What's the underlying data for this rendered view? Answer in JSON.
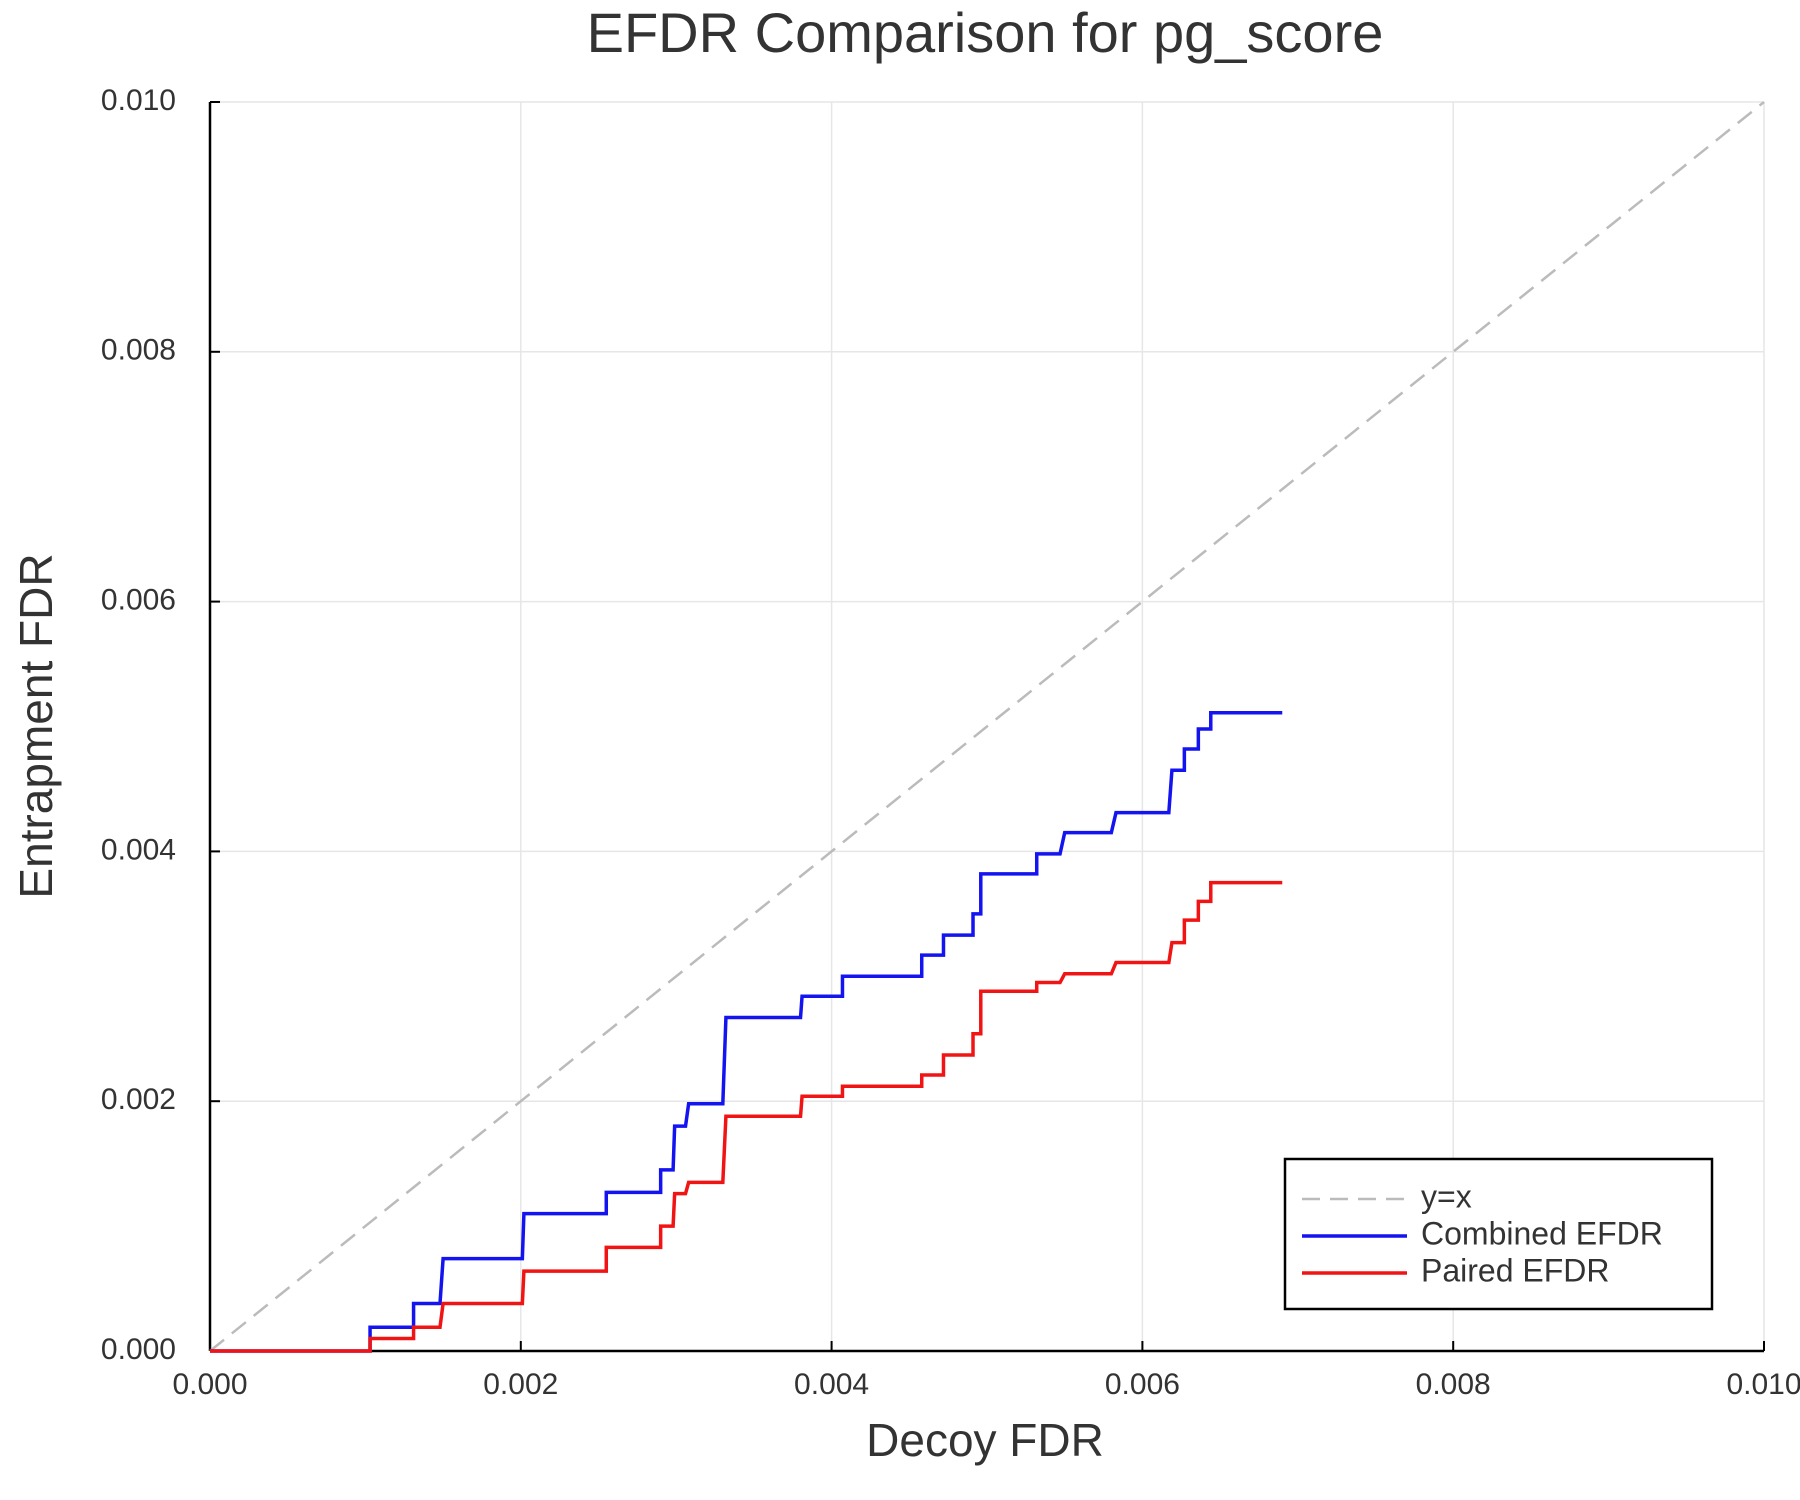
{
  "chart_data": {
    "type": "line",
    "title": "EFDR Comparison for pg_score",
    "xlabel": "Decoy FDR",
    "ylabel": "Entrapment FDR",
    "xlim": [
      0,
      0.01
    ],
    "ylim": [
      0,
      0.01
    ],
    "xticks": [
      {
        "value": 0,
        "label": "0.000"
      },
      {
        "value": 0.002,
        "label": "0.002"
      },
      {
        "value": 0.004,
        "label": "0.004"
      },
      {
        "value": 0.006,
        "label": "0.006"
      },
      {
        "value": 0.008,
        "label": "0.008"
      },
      {
        "value": 0.01,
        "label": "0.010"
      }
    ],
    "yticks": [
      {
        "value": 0,
        "label": "0.000"
      },
      {
        "value": 0.002,
        "label": "0.002"
      },
      {
        "value": 0.004,
        "label": "0.004"
      },
      {
        "value": 0.006,
        "label": "0.006"
      },
      {
        "value": 0.008,
        "label": "0.008"
      },
      {
        "value": 0.01,
        "label": "0.010"
      }
    ],
    "grid": true,
    "legend": "bottom right",
    "series": [
      {
        "name": "y=x",
        "color": "#bbbbbb",
        "style": "dashed",
        "x": [
          0,
          0.01
        ],
        "values": [
          0,
          0.01
        ]
      },
      {
        "name": "Combined EFDR",
        "color": "#1414f0",
        "style": "solid",
        "x": [
          0,
          0.00103,
          0.00103,
          0.00131,
          0.00131,
          0.00148,
          0.0015,
          0.00201,
          0.00202,
          0.00255,
          0.00255,
          0.0029,
          0.0029,
          0.00298,
          0.00299,
          0.00306,
          0.00308,
          0.0033,
          0.00332,
          0.0038,
          0.00381,
          0.00407,
          0.00407,
          0.00458,
          0.00458,
          0.00472,
          0.00472,
          0.00491,
          0.00491,
          0.00496,
          0.00496,
          0.00532,
          0.00532,
          0.00547,
          0.0055,
          0.0058,
          0.00583,
          0.00617,
          0.00619,
          0.00627,
          0.00627,
          0.00636,
          0.00636,
          0.00644,
          0.00644,
          0.0069
        ],
        "values": [
          0,
          0,
          0.00019,
          0.00019,
          0.00038,
          0.00038,
          0.00074,
          0.00074,
          0.0011,
          0.0011,
          0.00127,
          0.00127,
          0.00145,
          0.00145,
          0.0018,
          0.0018,
          0.00198,
          0.00198,
          0.00267,
          0.00267,
          0.00284,
          0.00284,
          0.003,
          0.003,
          0.00317,
          0.00317,
          0.00333,
          0.00333,
          0.0035,
          0.0035,
          0.00382,
          0.00382,
          0.00398,
          0.00398,
          0.00415,
          0.00415,
          0.00431,
          0.00431,
          0.00465,
          0.00465,
          0.00482,
          0.00482,
          0.00498,
          0.00498,
          0.00511,
          0.00511
        ]
      },
      {
        "name": "Paired EFDR",
        "color": "#f01414",
        "style": "solid",
        "x": [
          0,
          0.00103,
          0.00103,
          0.00131,
          0.00131,
          0.00148,
          0.0015,
          0.00201,
          0.00202,
          0.00255,
          0.00255,
          0.0029,
          0.0029,
          0.00298,
          0.00299,
          0.00306,
          0.00308,
          0.0033,
          0.00332,
          0.0038,
          0.00381,
          0.00407,
          0.00407,
          0.00458,
          0.00458,
          0.00472,
          0.00472,
          0.00491,
          0.00491,
          0.00496,
          0.00496,
          0.00532,
          0.00532,
          0.00547,
          0.0055,
          0.0058,
          0.00583,
          0.00617,
          0.00619,
          0.00627,
          0.00627,
          0.00636,
          0.00636,
          0.00644,
          0.00644,
          0.0069
        ],
        "values": [
          0,
          0,
          0.0001,
          0.0001,
          0.00019,
          0.00019,
          0.00038,
          0.00038,
          0.00064,
          0.00064,
          0.00083,
          0.00083,
          0.001,
          0.001,
          0.00126,
          0.00126,
          0.00135,
          0.00135,
          0.00188,
          0.00188,
          0.00204,
          0.00204,
          0.00212,
          0.00212,
          0.00221,
          0.00221,
          0.00237,
          0.00237,
          0.00254,
          0.00254,
          0.00288,
          0.00288,
          0.00295,
          0.00295,
          0.00302,
          0.00302,
          0.00311,
          0.00311,
          0.00327,
          0.00327,
          0.00345,
          0.00345,
          0.0036,
          0.0036,
          0.00375,
          0.00375
        ]
      }
    ]
  }
}
